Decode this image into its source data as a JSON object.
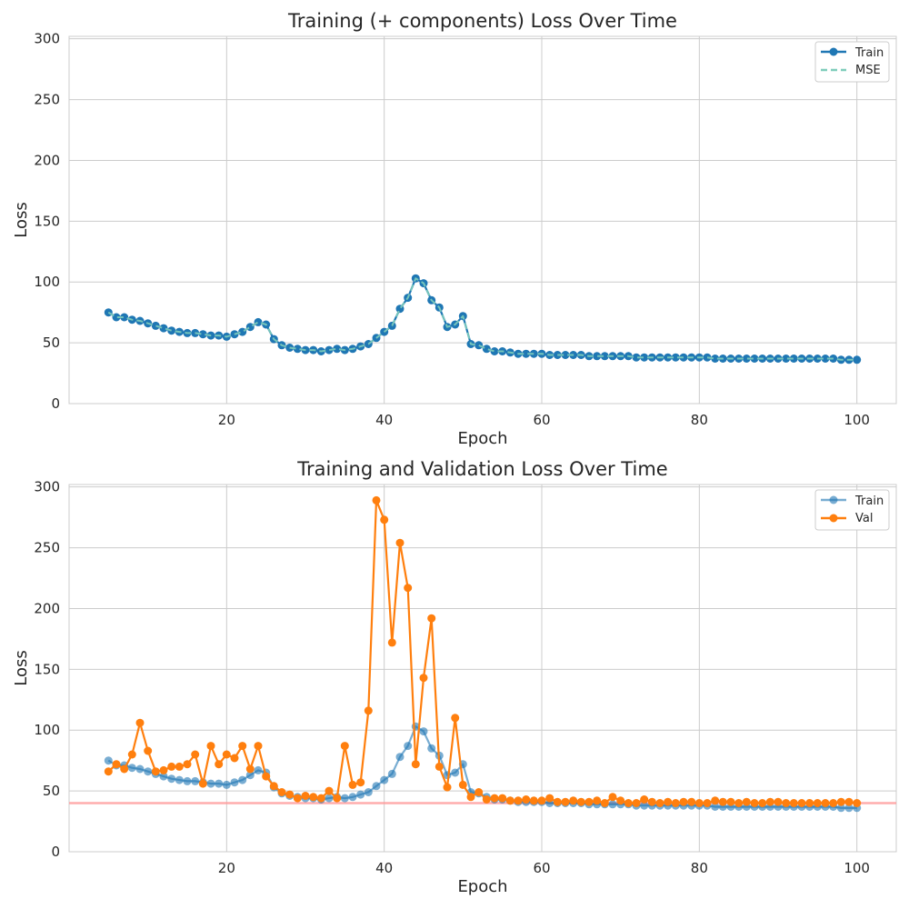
{
  "chart_data": [
    {
      "type": "line",
      "title": "Training (+ components) Loss Over Time",
      "xlabel": "Epoch",
      "ylabel": "Loss",
      "xlim": [
        0,
        105
      ],
      "ylim": [
        0,
        302
      ],
      "xticks": [
        20,
        40,
        60,
        80,
        100
      ],
      "yticks": [
        0,
        50,
        100,
        150,
        200,
        250,
        300
      ],
      "grid": true,
      "legend_position": "top-right",
      "x": [
        5,
        6,
        7,
        8,
        9,
        10,
        11,
        12,
        13,
        14,
        15,
        16,
        17,
        18,
        19,
        20,
        21,
        22,
        23,
        24,
        25,
        26,
        27,
        28,
        29,
        30,
        31,
        32,
        33,
        34,
        35,
        36,
        37,
        38,
        39,
        40,
        41,
        42,
        43,
        44,
        45,
        46,
        47,
        48,
        49,
        50,
        51,
        52,
        53,
        54,
        55,
        56,
        57,
        58,
        59,
        60,
        61,
        62,
        63,
        64,
        65,
        66,
        67,
        68,
        69,
        70,
        71,
        72,
        73,
        74,
        75,
        76,
        77,
        78,
        79,
        80,
        81,
        82,
        83,
        84,
        85,
        86,
        87,
        88,
        89,
        90,
        91,
        92,
        93,
        94,
        95,
        96,
        97,
        98,
        99,
        100
      ],
      "series": [
        {
          "name": "Train",
          "color": "#1f77b4",
          "style": "solid-markers",
          "values": [
            75,
            71,
            71,
            69,
            68,
            66,
            64,
            62,
            60,
            59,
            58,
            58,
            57,
            56,
            56,
            55,
            57,
            59,
            63,
            67,
            65,
            53,
            48,
            46,
            45,
            44,
            44,
            43,
            44,
            45,
            44,
            45,
            47,
            49,
            54,
            59,
            64,
            78,
            87,
            103,
            99,
            85,
            79,
            63,
            65,
            72,
            49,
            48,
            45,
            43,
            43,
            42,
            41,
            41,
            41,
            41,
            40,
            40,
            40,
            40,
            40,
            39,
            39,
            39,
            39,
            39,
            39,
            38,
            38,
            38,
            38,
            38,
            38,
            38,
            38,
            38,
            38,
            37,
            37,
            37,
            37,
            37,
            37,
            37,
            37,
            37,
            37,
            37,
            37,
            37,
            37,
            37,
            37,
            36,
            36,
            36
          ]
        },
        {
          "name": "MSE",
          "color": "#7fcdbb",
          "style": "dashed",
          "values": [
            75,
            71,
            71,
            69,
            68,
            66,
            64,
            62,
            60,
            59,
            58,
            58,
            57,
            56,
            56,
            55,
            57,
            59,
            63,
            67,
            65,
            53,
            48,
            46,
            45,
            44,
            44,
            43,
            44,
            45,
            44,
            45,
            47,
            49,
            54,
            59,
            64,
            78,
            87,
            103,
            99,
            85,
            79,
            63,
            65,
            72,
            49,
            48,
            45,
            43,
            43,
            42,
            41,
            41,
            41,
            41,
            40,
            40,
            40,
            40,
            40,
            39,
            39,
            39,
            39,
            39,
            39,
            38,
            38,
            38,
            38,
            38,
            38,
            38,
            38,
            38,
            38,
            37,
            37,
            37,
            37,
            37,
            37,
            37,
            37,
            37,
            37,
            37,
            37,
            37,
            37,
            37,
            37,
            36,
            36,
            36
          ]
        }
      ]
    },
    {
      "type": "line",
      "title": "Training and Validation Loss Over Time",
      "xlabel": "Epoch",
      "ylabel": "Loss",
      "xlim": [
        0,
        105
      ],
      "ylim": [
        0,
        302
      ],
      "xticks": [
        20,
        40,
        60,
        80,
        100
      ],
      "yticks": [
        0,
        50,
        100,
        150,
        200,
        250,
        300
      ],
      "grid": true,
      "legend_position": "top-right",
      "hline": {
        "y": 40,
        "color": "#ff9999"
      },
      "x": [
        5,
        6,
        7,
        8,
        9,
        10,
        11,
        12,
        13,
        14,
        15,
        16,
        17,
        18,
        19,
        20,
        21,
        22,
        23,
        24,
        25,
        26,
        27,
        28,
        29,
        30,
        31,
        32,
        33,
        34,
        35,
        36,
        37,
        38,
        39,
        40,
        41,
        42,
        43,
        44,
        45,
        46,
        47,
        48,
        49,
        50,
        51,
        52,
        53,
        54,
        55,
        56,
        57,
        58,
        59,
        60,
        61,
        62,
        63,
        64,
        65,
        66,
        67,
        68,
        69,
        70,
        71,
        72,
        73,
        74,
        75,
        76,
        77,
        78,
        79,
        80,
        81,
        82,
        83,
        84,
        85,
        86,
        87,
        88,
        89,
        90,
        91,
        92,
        93,
        94,
        95,
        96,
        97,
        98,
        99,
        100
      ],
      "series": [
        {
          "name": "Train",
          "color": "#1f77b4",
          "style": "faded-markers",
          "values": [
            75,
            71,
            71,
            69,
            68,
            66,
            64,
            62,
            60,
            59,
            58,
            58,
            57,
            56,
            56,
            55,
            57,
            59,
            63,
            67,
            65,
            53,
            48,
            46,
            45,
            44,
            44,
            43,
            44,
            45,
            44,
            45,
            47,
            49,
            54,
            59,
            64,
            78,
            87,
            103,
            99,
            85,
            79,
            63,
            65,
            72,
            49,
            48,
            45,
            43,
            43,
            42,
            41,
            41,
            41,
            41,
            40,
            40,
            40,
            40,
            40,
            39,
            39,
            39,
            39,
            39,
            39,
            38,
            38,
            38,
            38,
            38,
            38,
            38,
            38,
            38,
            38,
            37,
            37,
            37,
            37,
            37,
            37,
            37,
            37,
            37,
            37,
            37,
            37,
            37,
            37,
            37,
            37,
            36,
            36,
            36
          ]
        },
        {
          "name": "Val",
          "color": "#ff7f0e",
          "style": "solid-markers",
          "values": [
            66,
            72,
            68,
            80,
            106,
            83,
            66,
            67,
            70,
            70,
            72,
            80,
            56,
            87,
            72,
            80,
            77,
            87,
            68,
            87,
            62,
            54,
            49,
            47,
            44,
            46,
            45,
            44,
            50,
            44,
            87,
            55,
            57,
            116,
            289,
            273,
            172,
            254,
            217,
            72,
            143,
            192,
            70,
            53,
            110,
            55,
            45,
            49,
            43,
            44,
            44,
            42,
            42,
            43,
            42,
            42,
            44,
            41,
            41,
            42,
            41,
            41,
            42,
            40,
            45,
            42,
            40,
            40,
            43,
            41,
            40,
            41,
            40,
            41,
            41,
            40,
            40,
            42,
            41,
            41,
            40,
            41,
            40,
            40,
            41,
            41,
            40,
            40,
            40,
            40,
            40,
            40,
            40,
            41,
            41,
            40
          ]
        }
      ]
    }
  ]
}
